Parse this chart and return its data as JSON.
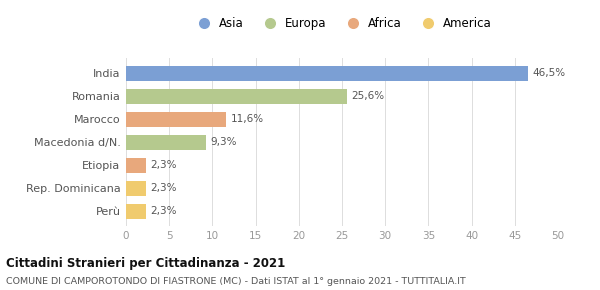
{
  "categories": [
    "India",
    "Romania",
    "Marocco",
    "Macedonia d/N.",
    "Etiopia",
    "Rep. Dominicana",
    "Perù"
  ],
  "values": [
    46.5,
    25.6,
    11.6,
    9.3,
    2.3,
    2.3,
    2.3
  ],
  "labels": [
    "46,5%",
    "25,6%",
    "11,6%",
    "9,3%",
    "2,3%",
    "2,3%",
    "2,3%"
  ],
  "colors": [
    "#7b9fd4",
    "#b5c98e",
    "#e8a87c",
    "#b5c98e",
    "#e8a87c",
    "#f0cb6e",
    "#f0cb6e"
  ],
  "legend": [
    {
      "label": "Asia",
      "color": "#7b9fd4"
    },
    {
      "label": "Europa",
      "color": "#b5c98e"
    },
    {
      "label": "Africa",
      "color": "#e8a87c"
    },
    {
      "label": "America",
      "color": "#f0cb6e"
    }
  ],
  "xlim": [
    0,
    50
  ],
  "xticks": [
    0,
    5,
    10,
    15,
    20,
    25,
    30,
    35,
    40,
    45,
    50
  ],
  "title": "Cittadini Stranieri per Cittadinanza - 2021",
  "subtitle": "COMUNE DI CAMPOROTONDO DI FIASTRONE (MC) - Dati ISTAT al 1° gennaio 2021 - TUTTITALIA.IT",
  "bg_color": "#ffffff",
  "bar_height": 0.65
}
